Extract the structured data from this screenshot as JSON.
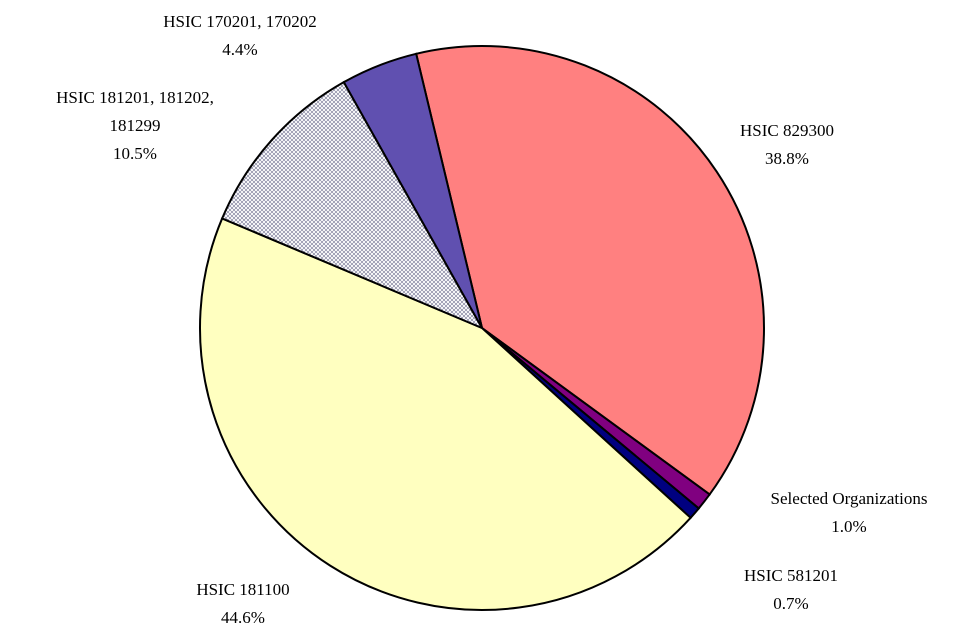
{
  "chart_data": {
    "type": "pie",
    "categories": [
      "HSIC 829300",
      "Selected Organizations",
      "HSIC 581201",
      "HSIC 181100",
      "HSIC 181201, 181202, 181299",
      "HSIC 170201, 170202"
    ],
    "values": [
      38.8,
      1.0,
      0.7,
      44.6,
      10.5,
      4.4
    ],
    "value_labels": [
      "38.8%",
      "1.0%",
      "0.7%",
      "44.6%",
      "10.5%",
      "4.4%"
    ],
    "colors": [
      "#ff8080",
      "#800080",
      "#000080",
      "#ffffc0",
      "#d8d8e0",
      "#6050b0"
    ]
  }
}
